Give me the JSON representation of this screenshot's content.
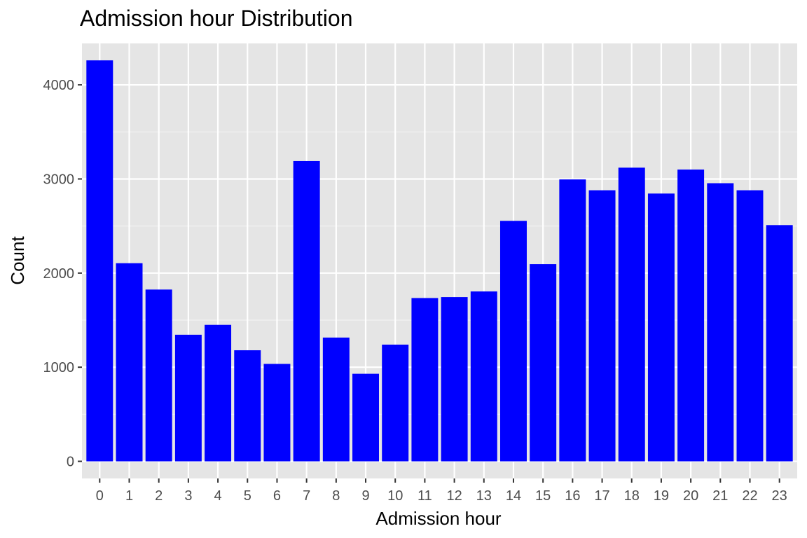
{
  "chart_data": {
    "type": "bar",
    "title": "Admission hour Distribution",
    "xlabel": "Admission hour",
    "ylabel": "Count",
    "categories": [
      "0",
      "1",
      "2",
      "3",
      "4",
      "5",
      "6",
      "7",
      "8",
      "9",
      "10",
      "11",
      "12",
      "13",
      "14",
      "15",
      "16",
      "17",
      "18",
      "19",
      "20",
      "21",
      "22",
      "23"
    ],
    "values": [
      4260,
      2105,
      1825,
      1345,
      1450,
      1180,
      1035,
      3190,
      1315,
      930,
      1240,
      1735,
      1745,
      1805,
      2555,
      2095,
      2995,
      2880,
      3120,
      2845,
      3100,
      2955,
      2880,
      2510
    ],
    "yticks": [
      0,
      1000,
      2000,
      3000,
      4000
    ],
    "ylim": [
      -182,
      4440
    ],
    "bar_color": "#0000ff",
    "panel_color": "#e5e5e5",
    "grid": true,
    "legend": "none"
  }
}
